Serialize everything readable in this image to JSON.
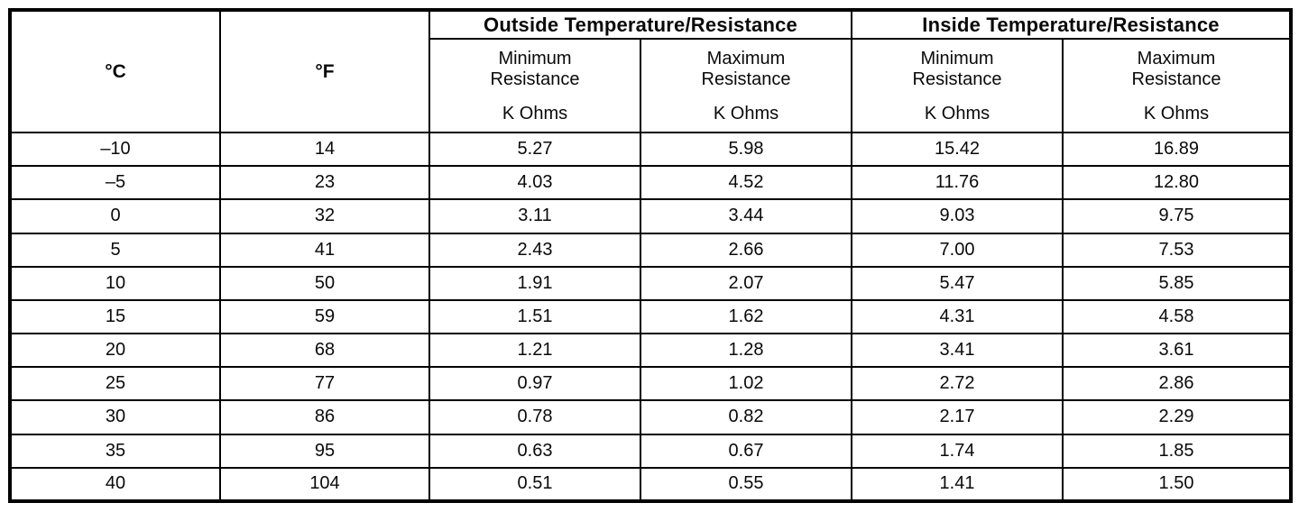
{
  "table": {
    "col_c": "°C",
    "col_f": "°F",
    "group_outside": "Outside Temperature/Resistance",
    "group_inside": "Inside Temperature/Resistance",
    "sub_min": "Minimum Resistance",
    "sub_max": "Maximum Resistance",
    "unit": "K Ohms",
    "rows": [
      {
        "c": "–10",
        "f": "14",
        "out_min": "5.27",
        "out_max": "5.98",
        "in_min": "15.42",
        "in_max": "16.89"
      },
      {
        "c": "–5",
        "f": "23",
        "out_min": "4.03",
        "out_max": "4.52",
        "in_min": "11.76",
        "in_max": "12.80"
      },
      {
        "c": "0",
        "f": "32",
        "out_min": "3.11",
        "out_max": "3.44",
        "in_min": "9.03",
        "in_max": "9.75"
      },
      {
        "c": "5",
        "f": "41",
        "out_min": "2.43",
        "out_max": "2.66",
        "in_min": "7.00",
        "in_max": "7.53"
      },
      {
        "c": "10",
        "f": "50",
        "out_min": "1.91",
        "out_max": "2.07",
        "in_min": "5.47",
        "in_max": "5.85"
      },
      {
        "c": "15",
        "f": "59",
        "out_min": "1.51",
        "out_max": "1.62",
        "in_min": "4.31",
        "in_max": "4.58"
      },
      {
        "c": "20",
        "f": "68",
        "out_min": "1.21",
        "out_max": "1.28",
        "in_min": "3.41",
        "in_max": "3.61"
      },
      {
        "c": "25",
        "f": "77",
        "out_min": "0.97",
        "out_max": "1.02",
        "in_min": "2.72",
        "in_max": "2.86"
      },
      {
        "c": "30",
        "f": "86",
        "out_min": "0.78",
        "out_max": "0.82",
        "in_min": "2.17",
        "in_max": "2.29"
      },
      {
        "c": "35",
        "f": "95",
        "out_min": "0.63",
        "out_max": "0.67",
        "in_min": "1.74",
        "in_max": "1.85"
      },
      {
        "c": "40",
        "f": "104",
        "out_min": "0.51",
        "out_max": "0.55",
        "in_min": "1.41",
        "in_max": "1.50"
      }
    ]
  }
}
